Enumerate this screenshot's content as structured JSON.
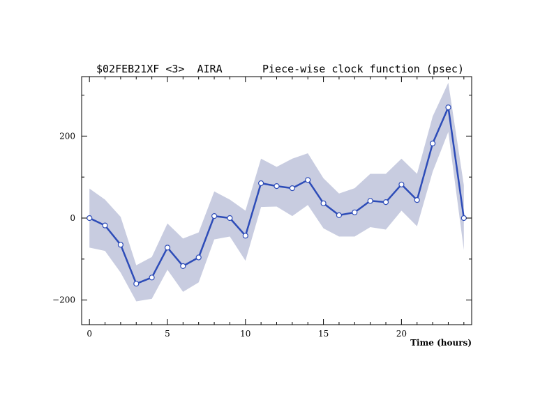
{
  "chart_data": {
    "type": "line",
    "title_left": "$02FEB21XF <3>  AIRA",
    "title_right": "Piece-wise clock function (psec)",
    "xlabel": "Time (hours)",
    "ylabel": "",
    "xlim": [
      -0.5,
      24.5
    ],
    "ylim": [
      -260,
      345
    ],
    "xticks": [
      0,
      5,
      10,
      15,
      20
    ],
    "yticks": [
      -200,
      0,
      200
    ],
    "grid": false,
    "colors": {
      "line": "#2d4cb8",
      "band": "#c8cce0",
      "marker_fill": "#ffffff",
      "axis": "#000000"
    },
    "series": [
      {
        "x": [
          0,
          1,
          2,
          3,
          4,
          5,
          6,
          7,
          8,
          9,
          10,
          11,
          12,
          13,
          14,
          15,
          16,
          17,
          18,
          19,
          20,
          21,
          22,
          23,
          24
        ],
        "values": [
          0,
          -18,
          -65,
          -160,
          -145,
          -72,
          -117,
          -96,
          5,
          0,
          -43,
          85,
          78,
          73,
          93,
          36,
          7,
          14,
          42,
          39,
          82,
          44,
          182,
          270,
          0
        ],
        "upper": [
          72,
          45,
          3,
          -115,
          -95,
          -13,
          -50,
          -35,
          65,
          45,
          18,
          145,
          125,
          145,
          158,
          97,
          60,
          73,
          108,
          108,
          145,
          108,
          248,
          330,
          80
        ],
        "lower": [
          -72,
          -80,
          -133,
          -203,
          -197,
          -126,
          -180,
          -157,
          -52,
          -45,
          -104,
          27,
          28,
          5,
          32,
          -25,
          -45,
          -45,
          -22,
          -28,
          18,
          -20,
          113,
          210,
          -78
        ]
      }
    ]
  }
}
